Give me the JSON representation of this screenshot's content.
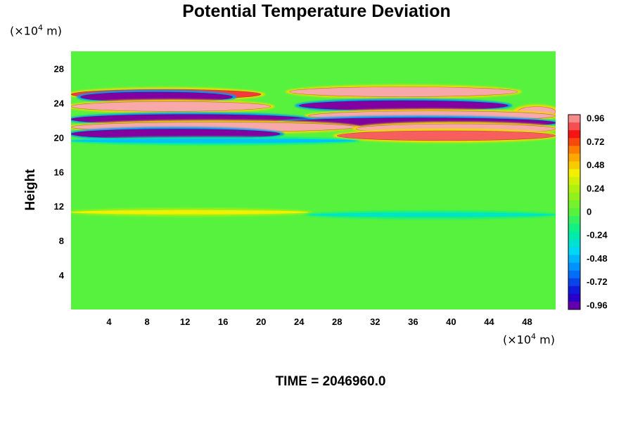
{
  "chart_data": {
    "type": "heatmap",
    "title": "Potential Temperature Deviation",
    "xlabel": "",
    "ylabel": "Height",
    "x_unit": {
      "prefix": "(×10",
      "exp": "4",
      "suffix": " m)"
    },
    "y_unit": {
      "prefix": "(×10",
      "exp": "4",
      "suffix": " m)"
    },
    "xlim": [
      0,
      51
    ],
    "ylim": [
      0,
      30
    ],
    "x_ticks": [
      4,
      8,
      12,
      16,
      20,
      24,
      28,
      32,
      36,
      40,
      44,
      48
    ],
    "y_ticks": [
      4,
      8,
      12,
      16,
      20,
      24,
      28
    ],
    "colorbar": {
      "min": -1.0,
      "max": 1.0,
      "ticks": [
        "0.96",
        "0.72",
        "0.48",
        "0.24",
        "0",
        "-0.24",
        "-0.48",
        "-0.72",
        "-0.96"
      ],
      "levels": 25
    },
    "bands": [
      {
        "y": 25.0,
        "x_from": 0,
        "x_to": 20,
        "value": 0.85
      },
      {
        "y": 24.7,
        "x_from": 1,
        "x_to": 17,
        "value": -1.0
      },
      {
        "y": 25.3,
        "x_from": 23,
        "x_to": 47,
        "value": 1.0
      },
      {
        "y": 23.6,
        "x_from": 0,
        "x_to": 21,
        "value": 1.0
      },
      {
        "y": 23.7,
        "x_from": 24,
        "x_to": 46,
        "value": -1.0
      },
      {
        "y": 23.0,
        "x_from": 47,
        "x_to": 51,
        "value": 1.0
      },
      {
        "y": 22.5,
        "x_from": 25,
        "x_to": 51,
        "value": 1.0
      },
      {
        "y": 22.1,
        "x_from": 0,
        "x_to": 25,
        "value": -1.0
      },
      {
        "y": 21.7,
        "x_from": 22,
        "x_to": 51,
        "value": -1.0
      },
      {
        "y": 21.2,
        "x_from": 0,
        "x_to": 30,
        "value": 1.0
      },
      {
        "y": 21.0,
        "x_from": 30,
        "x_to": 51,
        "value": 1.0
      },
      {
        "y": 20.4,
        "x_from": 0,
        "x_to": 22,
        "value": -1.0
      },
      {
        "y": 20.2,
        "x_from": 28,
        "x_to": 51,
        "value": 0.9
      },
      {
        "y": 19.6,
        "x_from": 0,
        "x_to": 30,
        "value": -0.45
      },
      {
        "y": 11.3,
        "x_from": 0,
        "x_to": 25,
        "value": 0.4
      },
      {
        "y": 11.0,
        "x_from": 25,
        "x_to": 51,
        "value": -0.3
      }
    ]
  },
  "footer": {
    "time": "TIME = 2046960.0"
  }
}
